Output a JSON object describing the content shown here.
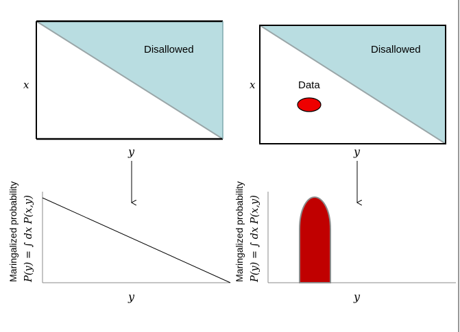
{
  "left_top": {
    "region_label": "Disallowed",
    "x_axis": "y",
    "y_axis": "x"
  },
  "right_top": {
    "region_label": "Disallowed",
    "data_label": "Data",
    "x_axis": "y",
    "y_axis": "x"
  },
  "left_bottom": {
    "ylabel_line1": "Maringalized probability",
    "ylabel_line2": "P(y) = ∫ dx P(x,y)",
    "x_axis": "y"
  },
  "right_bottom": {
    "ylabel_line1": "Maringalized probability",
    "ylabel_line2": "P(y) = ∫ dx P(x,y)",
    "x_axis": "y"
  },
  "colors": {
    "disallowed_fill": "#b9dde1",
    "data_fill": "#ee0000",
    "peak_fill": "#c00000",
    "peak_stroke": "#8c8c8c",
    "frame": "#000000"
  }
}
